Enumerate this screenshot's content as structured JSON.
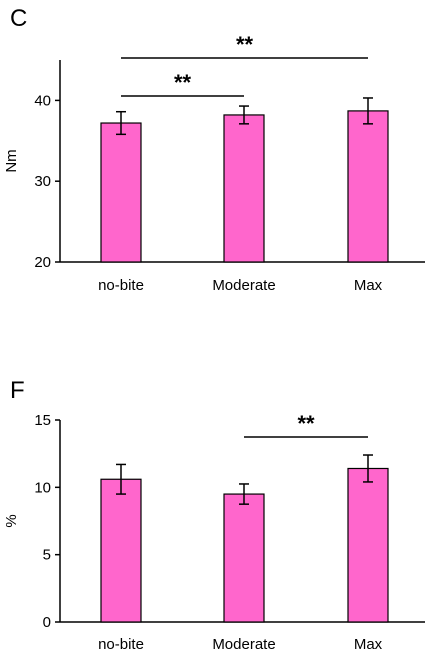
{
  "colors": {
    "bar_fill": "#ff66cc",
    "bar_stroke": "#000000",
    "axis": "#000000"
  },
  "chart_data": [
    {
      "type": "bar",
      "panel_label": "C",
      "title": "",
      "xlabel": "",
      "ylabel": "Nm",
      "ylim": [
        20,
        45
      ],
      "yticks": [
        20,
        30,
        40
      ],
      "categories": [
        "no-bite",
        "Moderate",
        "Max"
      ],
      "values": [
        37.2,
        38.2,
        38.7
      ],
      "errors": [
        1.4,
        1.1,
        1.6
      ],
      "grid": false,
      "significance": [
        {
          "from": 0,
          "to": 1,
          "label": "**"
        },
        {
          "from": 0,
          "to": 2,
          "label": "**"
        }
      ]
    },
    {
      "type": "bar",
      "panel_label": "F",
      "title": "",
      "xlabel": "",
      "ylabel": "%",
      "ylim": [
        0,
        15
      ],
      "yticks": [
        0,
        5,
        10,
        15
      ],
      "categories": [
        "no-bite",
        "Moderate",
        "Max"
      ],
      "values": [
        10.6,
        9.5,
        11.4
      ],
      "errors": [
        1.1,
        0.75,
        1.0
      ],
      "grid": false,
      "significance": [
        {
          "from": 1,
          "to": 2,
          "label": "**"
        }
      ]
    }
  ]
}
